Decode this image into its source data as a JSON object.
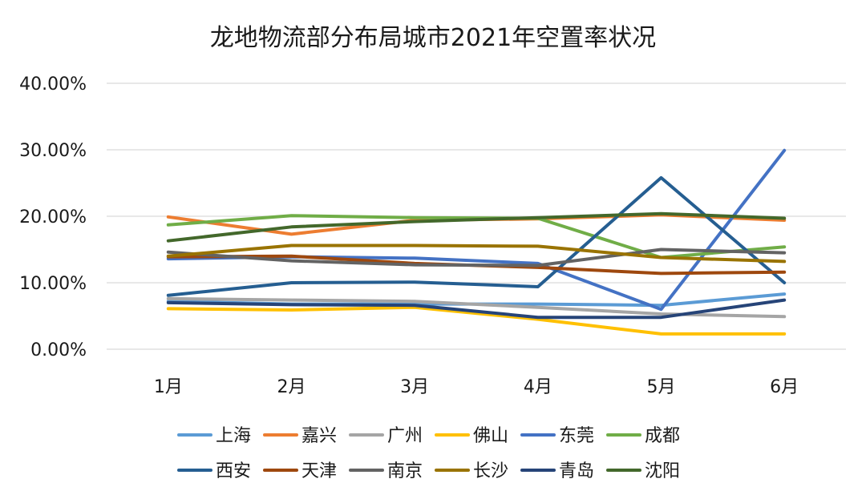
{
  "chart_data": {
    "type": "line",
    "title": "龙地物流部分布局城市2021年空置率状况",
    "xlabel": "",
    "ylabel": "",
    "categories": [
      "1月",
      "2月",
      "3月",
      "4月",
      "5月",
      "6月"
    ],
    "y_ticks": [
      "0.00%",
      "10.00%",
      "20.00%",
      "30.00%",
      "40.00%"
    ],
    "ylim": [
      0,
      40
    ],
    "grid": true,
    "legend_position": "bottom",
    "series": [
      {
        "name": "上海",
        "color": "#5b9bd5",
        "values": [
          7.2,
          6.8,
          6.8,
          6.8,
          6.6,
          8.3
        ]
      },
      {
        "name": "嘉兴",
        "color": "#ed7d31",
        "values": [
          19.9,
          17.3,
          19.4,
          19.6,
          20.2,
          19.4
        ]
      },
      {
        "name": "广州",
        "color": "#a5a5a5",
        "values": [
          7.6,
          7.4,
          7.2,
          6.3,
          5.3,
          4.9
        ]
      },
      {
        "name": "佛山",
        "color": "#ffc000",
        "values": [
          6.1,
          5.9,
          6.3,
          4.5,
          2.3,
          2.3
        ]
      },
      {
        "name": "东莞",
        "color": "#4472c4",
        "values": [
          13.6,
          13.9,
          13.7,
          12.9,
          6.0,
          29.9
        ]
      },
      {
        "name": "成都",
        "color": "#70ad47",
        "values": [
          18.7,
          20.1,
          19.8,
          19.7,
          13.8,
          15.4
        ]
      },
      {
        "name": "西安",
        "color": "#255e91",
        "values": [
          8.1,
          10.0,
          10.1,
          9.4,
          25.8,
          10.0
        ]
      },
      {
        "name": "天津",
        "color": "#9e480e",
        "values": [
          13.9,
          14.0,
          12.9,
          12.3,
          11.4,
          11.6
        ]
      },
      {
        "name": "南京",
        "color": "#636363",
        "values": [
          14.6,
          13.3,
          12.7,
          12.6,
          15.0,
          14.5
        ]
      },
      {
        "name": "长沙",
        "color": "#997300",
        "values": [
          14.0,
          15.6,
          15.6,
          15.5,
          13.8,
          13.2
        ]
      },
      {
        "name": "青岛",
        "color": "#264478",
        "values": [
          7.0,
          6.7,
          6.6,
          4.8,
          4.8,
          7.4
        ]
      },
      {
        "name": "沈阳",
        "color": "#43682b",
        "values": [
          16.3,
          18.4,
          19.2,
          19.8,
          20.4,
          19.7
        ]
      }
    ]
  }
}
